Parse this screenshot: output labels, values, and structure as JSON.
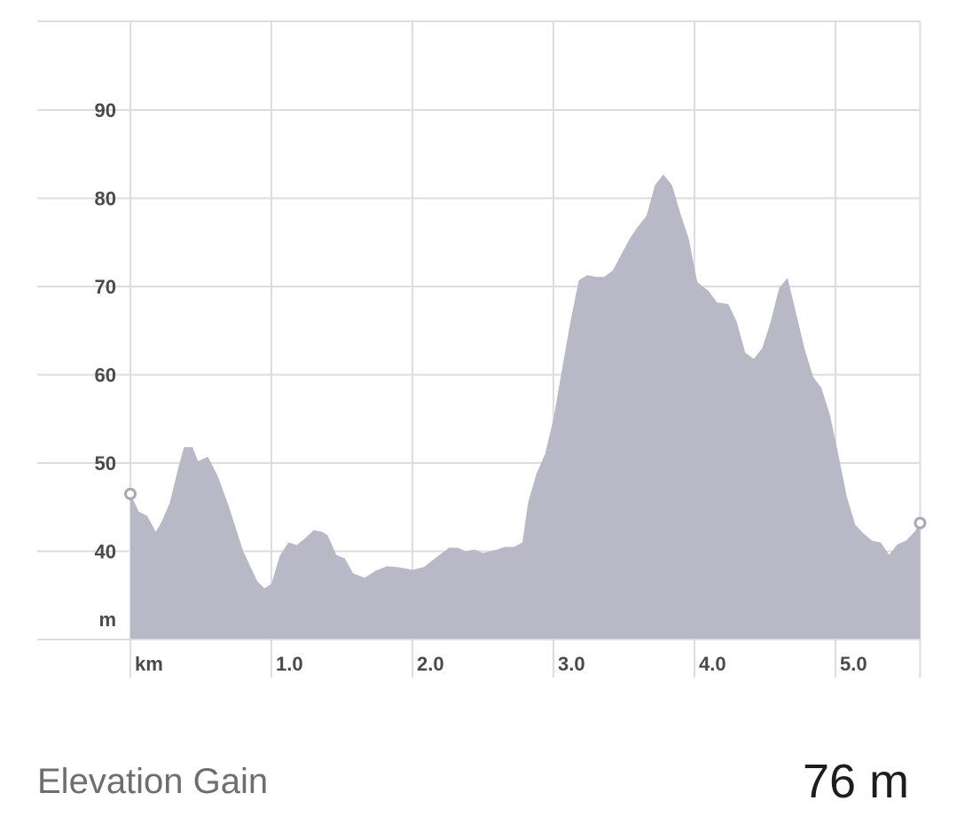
{
  "chart_data": {
    "type": "area",
    "x_unit_label": "km",
    "y_unit_label": "m",
    "xlim": [
      0,
      5.6
    ],
    "ylim": [
      30,
      100
    ],
    "x_ticks": [
      "1.0",
      "2.0",
      "3.0",
      "4.0",
      "5.0"
    ],
    "y_ticks": [
      "40",
      "50",
      "60",
      "70",
      "80",
      "90"
    ],
    "grid": true,
    "fill_color": "#b9b8c6",
    "grid_color": "#dcdce2",
    "marker_color": "#a9a8b6",
    "series": [
      {
        "x": [
          0,
          0.06,
          0.12,
          0.18,
          0.22,
          0.28,
          0.34,
          0.38,
          0.44,
          0.48,
          0.55,
          0.62,
          0.7,
          0.8,
          0.9,
          0.95,
          1.0,
          1.06,
          1.12,
          1.18,
          1.24,
          1.3,
          1.36,
          1.4,
          1.46,
          1.52,
          1.58,
          1.66,
          1.74,
          1.82,
          1.9,
          2.0,
          2.08,
          2.16,
          2.26,
          2.32,
          2.38,
          2.44,
          2.5,
          2.6,
          2.66,
          2.72,
          2.78,
          2.82,
          2.88,
          2.94,
          3.0,
          3.06,
          3.12,
          3.18,
          3.24,
          3.3,
          3.36,
          3.42,
          3.48,
          3.54,
          3.6,
          3.66,
          3.72,
          3.78,
          3.84,
          3.9,
          3.96,
          4.02,
          4.1,
          4.16,
          4.24,
          4.3,
          4.36,
          4.42,
          4.48,
          4.54,
          4.6,
          4.66,
          4.72,
          4.78,
          4.84,
          4.9,
          4.96,
          5.02,
          5.08,
          5.14,
          5.2,
          5.26,
          5.32,
          5.38,
          5.44,
          5.5,
          5.56,
          5.6
        ],
        "y": [
          46.5,
          44.5,
          44,
          42.2,
          43.3,
          45.5,
          49.5,
          51.8,
          51.8,
          50.2,
          50.7,
          48.5,
          45,
          40,
          36.6,
          35.8,
          36.3,
          39.5,
          41,
          40.7,
          41.5,
          42.4,
          42.2,
          41.8,
          39.6,
          39.2,
          37.5,
          37,
          37.8,
          38.3,
          38.2,
          37.9,
          38.2,
          39.2,
          40.4,
          40.4,
          40,
          40.2,
          39.8,
          40.2,
          40.5,
          40.5,
          41,
          45.5,
          48.8,
          51,
          55,
          60.5,
          66,
          70.7,
          71.3,
          71.1,
          71.1,
          71.8,
          73.6,
          75.4,
          76.8,
          78,
          81.5,
          82.7,
          81.5,
          78.3,
          75.4,
          70.5,
          69.5,
          68.2,
          68,
          66,
          62.5,
          61.8,
          63,
          66,
          69.8,
          71,
          67,
          63,
          59.8,
          58.5,
          55.5,
          51,
          46.2,
          43,
          42,
          41.2,
          41,
          39.6,
          40.8,
          41.2,
          42.2,
          43.2
        ]
      }
    ]
  },
  "footer": {
    "label": "Elevation Gain",
    "value": "76 m"
  }
}
